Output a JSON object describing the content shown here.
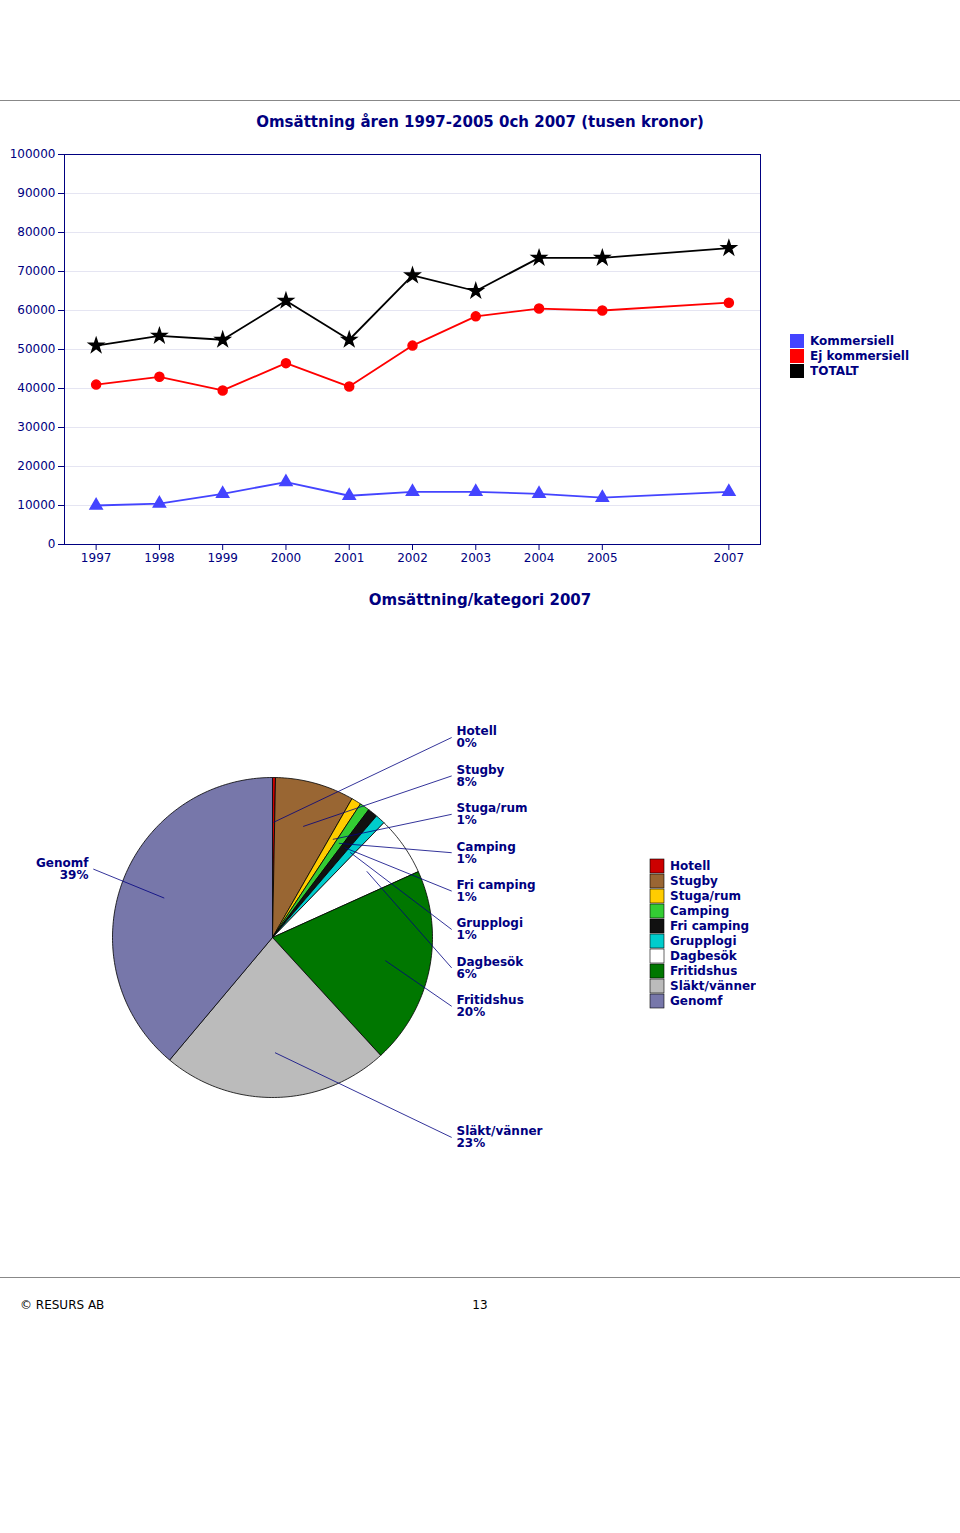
{
  "chart_data": [
    {
      "type": "line",
      "title": "Omsättning åren 1997-2005 0ch 2007 (tusen kronor)",
      "x": [
        1997,
        1998,
        1999,
        2000,
        2001,
        2002,
        2003,
        2004,
        2005,
        2007
      ],
      "series": [
        {
          "name": "Kommersiell",
          "color": "#4444ff",
          "marker": "triangle",
          "values": [
            10000,
            10500,
            13000,
            16000,
            12500,
            13500,
            13500,
            13000,
            12000,
            13500
          ]
        },
        {
          "name": "Ej kommersiell",
          "color": "#ff0000",
          "marker": "circle",
          "values": [
            41000,
            43000,
            39500,
            46500,
            40500,
            51000,
            58500,
            60500,
            60000,
            62000
          ]
        },
        {
          "name": "TOTALT",
          "color": "#000000",
          "marker": "star",
          "values": [
            51000,
            53500,
            52500,
            62500,
            52500,
            69000,
            65000,
            73500,
            73500,
            76000
          ]
        }
      ],
      "xlim": [
        1996.5,
        2007.5
      ],
      "xticks": [
        1997,
        1998,
        1999,
        2000,
        2001,
        2002,
        2003,
        2004,
        2005,
        2007
      ],
      "ylim": [
        0,
        100000
      ],
      "yticks": [
        0,
        10000,
        20000,
        30000,
        40000,
        50000,
        60000,
        70000,
        80000,
        90000,
        100000
      ],
      "grid": true,
      "legend": "right"
    },
    {
      "type": "pie",
      "title": "Omsättning/kategori 2007",
      "categories": [
        "Hotell",
        "Stugby",
        "Stuga/rum",
        "Camping",
        "Fri camping",
        "Grupplogi",
        "Dagbesök",
        "Fritidshus",
        "Släkt/vänner",
        "Genomf"
      ],
      "values": [
        0.3,
        8,
        1,
        1,
        1,
        1,
        6,
        20,
        23,
        39
      ],
      "value_labels": [
        "0%",
        "8%",
        "1%",
        "1%",
        "1%",
        "1%",
        "6%",
        "20%",
        "23%",
        "39%"
      ],
      "colors": [
        "#cc0000",
        "#996633",
        "#ffcc00",
        "#33cc33",
        "#111111",
        "#00cccc",
        "#ffffff",
        "#007700",
        "#bbbbbb",
        "#7777aa"
      ],
      "data_labels": true,
      "legend": "right"
    }
  ],
  "footer": [
    "© RESURS  AB",
    "13"
  ]
}
